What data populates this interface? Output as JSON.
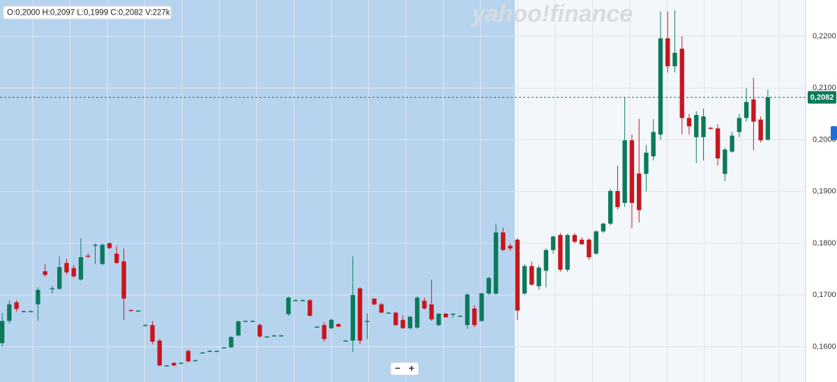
{
  "chart_data": {
    "type": "candlestick",
    "watermark": "yahoo!finance",
    "info": "O:0,2000  H:0,2097  L:0,1999  C:0,2082  V:227k",
    "zoom_out": "−",
    "zoom_in": "+",
    "up_color": "#0b7a5b",
    "down_color": "#c8161d",
    "ylim": [
      0.1532,
      0.227
    ],
    "yticks": [
      {
        "value": 0.16,
        "label": "0,1600"
      },
      {
        "value": 0.17,
        "label": "0,1700"
      },
      {
        "value": 0.18,
        "label": "0,1800"
      },
      {
        "value": 0.19,
        "label": "0,1900"
      },
      {
        "value": 0.2,
        "label": "0,2000"
      },
      {
        "value": 0.21,
        "label": "0,2100"
      },
      {
        "value": 0.22,
        "label": "0,2200"
      }
    ],
    "grid": true,
    "last_price": {
      "value": 0.2082,
      "label": "0,2082"
    },
    "ohlc": [
      [
        0.1607,
        0.1665,
        0.16,
        0.165
      ],
      [
        0.165,
        0.169,
        0.1645,
        0.1682
      ],
      [
        0.1686,
        0.169,
        0.1668,
        0.1673
      ],
      [
        0.1669,
        0.167,
        0.1668,
        0.1669
      ],
      [
        0.1669,
        0.167,
        0.1668,
        0.1669
      ],
      [
        0.1682,
        0.1715,
        0.165,
        0.171
      ],
      [
        0.1746,
        0.176,
        0.1735,
        0.1739
      ],
      [
        0.1713,
        0.1718,
        0.1703,
        0.1713
      ],
      [
        0.1712,
        0.1775,
        0.171,
        0.1754
      ],
      [
        0.1762,
        0.177,
        0.174,
        0.1744
      ],
      [
        0.1752,
        0.1758,
        0.1733,
        0.1736
      ],
      [
        0.173,
        0.181,
        0.1728,
        0.1773
      ],
      [
        0.1776,
        0.178,
        0.1772,
        0.1775
      ],
      [
        0.1797,
        0.18,
        0.176,
        0.1797
      ],
      [
        0.176,
        0.18,
        0.1758,
        0.1797
      ],
      [
        0.18,
        0.1802,
        0.1788,
        0.1791
      ],
      [
        0.178,
        0.1795,
        0.176,
        0.1762
      ],
      [
        0.1765,
        0.179,
        0.1652,
        0.1693
      ],
      [
        0.1671,
        0.1672,
        0.1669,
        0.167
      ],
      [
        0.167,
        0.1671,
        0.1669,
        0.167
      ],
      [
        0.1642,
        0.1644,
        0.164,
        0.1642
      ],
      [
        0.1642,
        0.165,
        0.1605,
        0.161
      ],
      [
        0.1612,
        0.1615,
        0.1562,
        0.1564
      ],
      [
        0.1564,
        0.1565,
        0.1563,
        0.1564
      ],
      [
        0.1569,
        0.157,
        0.1562,
        0.1564
      ],
      [
        0.1569,
        0.157,
        0.1568,
        0.1569
      ],
      [
        0.1592,
        0.1595,
        0.157,
        0.1572
      ],
      [
        0.1574,
        0.1575,
        0.1573,
        0.1574
      ],
      [
        0.1589,
        0.159,
        0.1588,
        0.1589
      ],
      [
        0.1592,
        0.1593,
        0.1591,
        0.1592
      ],
      [
        0.1592,
        0.1593,
        0.1591,
        0.1592
      ],
      [
        0.1599,
        0.16,
        0.1598,
        0.1599
      ],
      [
        0.1599,
        0.162,
        0.1598,
        0.1619
      ],
      [
        0.1622,
        0.1652,
        0.162,
        0.1649
      ],
      [
        0.165,
        0.1651,
        0.1649,
        0.165
      ],
      [
        0.165,
        0.1651,
        0.1649,
        0.165
      ],
      [
        0.1642,
        0.1645,
        0.1617,
        0.162
      ],
      [
        0.162,
        0.1621,
        0.1619,
        0.162
      ],
      [
        0.1622,
        0.1623,
        0.1621,
        0.1622
      ],
      [
        0.1622,
        0.1623,
        0.1621,
        0.1622
      ],
      [
        0.1663,
        0.1697,
        0.166,
        0.1695
      ],
      [
        0.169,
        0.1692,
        0.1688,
        0.169
      ],
      [
        0.169,
        0.1692,
        0.1688,
        0.169
      ],
      [
        0.169,
        0.1692,
        0.1658,
        0.166
      ],
      [
        0.1639,
        0.164,
        0.1638,
        0.1639
      ],
      [
        0.1642,
        0.1648,
        0.161,
        0.1615
      ],
      [
        0.1636,
        0.1655,
        0.1634,
        0.1652
      ],
      [
        0.1644,
        0.1645,
        0.1638,
        0.1639
      ],
      [
        0.1612,
        0.1613,
        0.1611,
        0.1612
      ],
      [
        0.1612,
        0.1775,
        0.159,
        0.17
      ],
      [
        0.1713,
        0.1715,
        0.1605,
        0.1612
      ],
      [
        0.165,
        0.1665,
        0.1615,
        0.165
      ],
      [
        0.1693,
        0.1694,
        0.168,
        0.1682
      ],
      [
        0.1682,
        0.1685,
        0.1665,
        0.1666
      ],
      [
        0.1666,
        0.1667,
        0.1665,
        0.1666
      ],
      [
        0.1666,
        0.1668,
        0.164,
        0.1642
      ],
      [
        0.1652,
        0.166,
        0.1635,
        0.1636
      ],
      [
        0.1636,
        0.166,
        0.1634,
        0.1658
      ],
      [
        0.1637,
        0.1698,
        0.1635,
        0.1695
      ],
      [
        0.1689,
        0.1695,
        0.1672,
        0.1674
      ],
      [
        0.1682,
        0.173,
        0.165,
        0.1653
      ],
      [
        0.1642,
        0.1665,
        0.164,
        0.1664
      ],
      [
        0.1664,
        0.1665,
        0.1657,
        0.1657
      ],
      [
        0.1664,
        0.1665,
        0.1656,
        0.1664
      ],
      [
        0.166,
        0.1661,
        0.1659,
        0.166
      ],
      [
        0.1642,
        0.1703,
        0.1635,
        0.1701
      ],
      [
        0.1674,
        0.168,
        0.1638,
        0.1642
      ],
      [
        0.165,
        0.1705,
        0.1648,
        0.1703
      ],
      [
        0.1703,
        0.1735,
        0.17,
        0.1733
      ],
      [
        0.1703,
        0.1838,
        0.17,
        0.1821
      ],
      [
        0.1821,
        0.183,
        0.1785,
        0.1787
      ],
      [
        0.1795,
        0.18,
        0.1785,
        0.179
      ],
      [
        0.1807,
        0.181,
        0.1652,
        0.167
      ],
      [
        0.1703,
        0.176,
        0.17,
        0.1756
      ],
      [
        0.1756,
        0.1765,
        0.1718,
        0.172
      ],
      [
        0.1717,
        0.1758,
        0.171,
        0.1753
      ],
      [
        0.1747,
        0.179,
        0.1715,
        0.1787
      ],
      [
        0.1787,
        0.1815,
        0.178,
        0.1813
      ],
      [
        0.1816,
        0.182,
        0.1745,
        0.1749
      ],
      [
        0.1749,
        0.1818,
        0.1745,
        0.1816
      ],
      [
        0.1816,
        0.182,
        0.18,
        0.1803
      ],
      [
        0.1807,
        0.1812,
        0.1797,
        0.1798
      ],
      [
        0.1807,
        0.181,
        0.1768,
        0.1773
      ],
      [
        0.178,
        0.1825,
        0.1778,
        0.1823
      ],
      [
        0.1823,
        0.184,
        0.182,
        0.1838
      ],
      [
        0.1838,
        0.1905,
        0.1835,
        0.1901
      ],
      [
        0.1901,
        0.195,
        0.1865,
        0.187
      ],
      [
        0.1878,
        0.2082,
        0.187,
        0.1999
      ],
      [
        0.1999,
        0.201,
        0.1829,
        0.1878
      ],
      [
        0.1935,
        0.204,
        0.184,
        0.1864
      ],
      [
        0.1934,
        0.199,
        0.19,
        0.1975
      ],
      [
        0.1968,
        0.204,
        0.196,
        0.2015
      ],
      [
        0.201,
        0.2248,
        0.2,
        0.2196
      ],
      [
        0.2196,
        0.2248,
        0.213,
        0.2142
      ],
      [
        0.2142,
        0.225,
        0.213,
        0.2168
      ],
      [
        0.2176,
        0.22,
        0.201,
        0.2042
      ],
      [
        0.2042,
        0.205,
        0.201,
        0.2026
      ],
      [
        0.2005,
        0.2055,
        0.1955,
        0.2048
      ],
      [
        0.2005,
        0.206,
        0.196,
        0.2045
      ],
      [
        0.2023,
        0.2025,
        0.202,
        0.2021
      ],
      [
        0.2022,
        0.203,
        0.195,
        0.1964
      ],
      [
        0.1934,
        0.1985,
        0.192,
        0.1981
      ],
      [
        0.1977,
        0.2015,
        0.1975,
        0.2008
      ],
      [
        0.2015,
        0.205,
        0.2005,
        0.2042
      ],
      [
        0.2042,
        0.21,
        0.2035,
        0.2073
      ],
      [
        0.2078,
        0.212,
        0.198,
        0.2035
      ],
      [
        0.2039,
        0.2045,
        0.1995,
        0.1999
      ],
      [
        0.2,
        0.2097,
        0.1999,
        0.2082
      ]
    ]
  }
}
